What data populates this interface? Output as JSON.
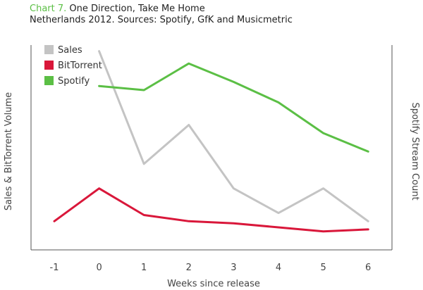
{
  "header": {
    "chart_label": "Chart 7.",
    "title": "One Direction, Take Me Home",
    "subtitle": "Netherlands 2012. Sources: Spotify, GfK and Musicmetric"
  },
  "chart_data": {
    "type": "line",
    "title": "One Direction, Take Me Home",
    "subtitle": "Netherlands 2012. Sources: Spotify, GfK and Musicmetric",
    "xlabel": "Weeks since release",
    "ylabel_left": "Sales & BitTorrent Volume",
    "ylabel_right": "Spotify Stream Count",
    "x": [
      -1,
      0,
      1,
      2,
      3,
      4,
      5,
      6
    ],
    "x_tick_labels": [
      "-1",
      "0",
      "1",
      "2",
      "3",
      "4",
      "5",
      "6"
    ],
    "y_axis_unlabeled": true,
    "ylim": [
      0,
      100
    ],
    "grid": false,
    "legend_position": "top-left",
    "series": [
      {
        "name": "Sales",
        "color": "#c4c4c4",
        "x": [
          0,
          1,
          2,
          3,
          4,
          5,
          6
        ],
        "values": [
          97,
          42,
          61,
          30,
          18,
          30,
          14
        ]
      },
      {
        "name": "BitTorrent",
        "color": "#d9173a",
        "x": [
          -1,
          0,
          1,
          2,
          3,
          4,
          5,
          6
        ],
        "values": [
          14,
          30,
          17,
          14,
          13,
          11,
          9,
          10
        ]
      },
      {
        "name": "Spotify",
        "color": "#5bbf45",
        "x": [
          0,
          1,
          2,
          3,
          4,
          5,
          6
        ],
        "values": [
          80,
          78,
          91,
          82,
          72,
          57,
          48
        ]
      }
    ]
  }
}
